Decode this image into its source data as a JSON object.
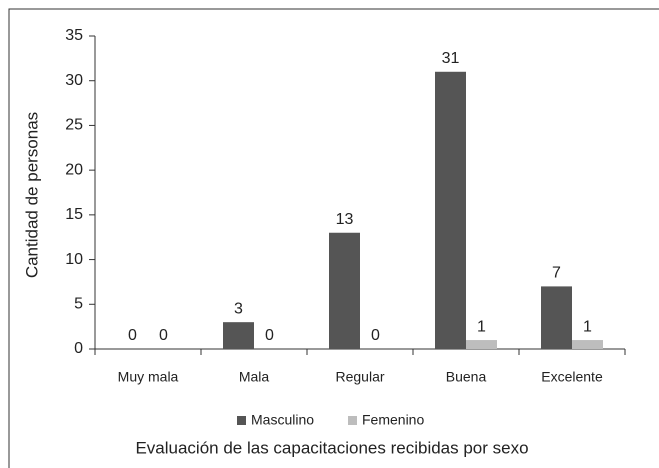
{
  "chart_data": {
    "type": "bar",
    "title": "Evaluación de las capacitaciones recibidas por sexo",
    "y_label": "Cantidad de personas",
    "categories": [
      "Muy mala",
      "Mala",
      "Regular",
      "Buena",
      "Excelente"
    ],
    "series": [
      {
        "name": "Masculino",
        "color": "#555555",
        "values": [
          0,
          3,
          13,
          31,
          7
        ]
      },
      {
        "name": "Femenino",
        "color": "#bdbdbd",
        "values": [
          0,
          0,
          0,
          1,
          1
        ]
      }
    ],
    "ylim": [
      0,
      35
    ],
    "yticks": [
      0,
      5,
      10,
      15,
      20,
      25,
      30,
      35
    ],
    "legend": "bottom"
  }
}
